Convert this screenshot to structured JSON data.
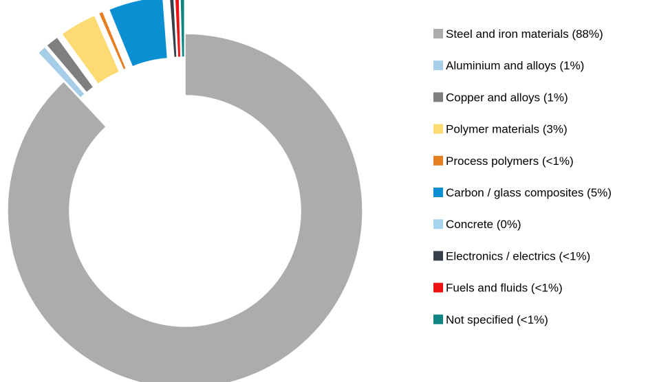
{
  "chart_data": {
    "type": "pie",
    "subtype": "donut",
    "exploded_slices": "all except the largest",
    "legend_position": "right",
    "slices": [
      {
        "label": "Steel and iron materials (88%)",
        "value": 88.2,
        "color": "#acacac",
        "exploded": false
      },
      {
        "label": "Aluminium and alloys (1%)",
        "value": 0.8,
        "color": "#a6cee8",
        "exploded": true
      },
      {
        "label": "Copper and alloys (1%)",
        "value": 1.2,
        "color": "#7f7f7f",
        "exploded": true
      },
      {
        "label": "Polymer materials (3%)",
        "value": 3.4,
        "color": "#fddb72",
        "exploded": true
      },
      {
        "label": "Process polymers (<1%)",
        "value": 0.4,
        "color": "#e67e22",
        "exploded": true
      },
      {
        "label": "Carbon / glass composites (5%)",
        "value": 5.0,
        "color": "#0a8fd3",
        "exploded": true
      },
      {
        "label": "Concrete (0%)",
        "value": 0.0,
        "color": "#a6d3ee",
        "exploded": true
      },
      {
        "label": "Electronics / electrics (<1%)",
        "value": 0.4,
        "color": "#36404a",
        "exploded": true
      },
      {
        "label": "Fuels and fluids (<1%)",
        "value": 0.4,
        "color": "#ee1111",
        "exploded": true
      },
      {
        "label": "Not specified (<1%)",
        "value": 0.4,
        "color": "#0f8482",
        "exploded": true
      }
    ]
  }
}
